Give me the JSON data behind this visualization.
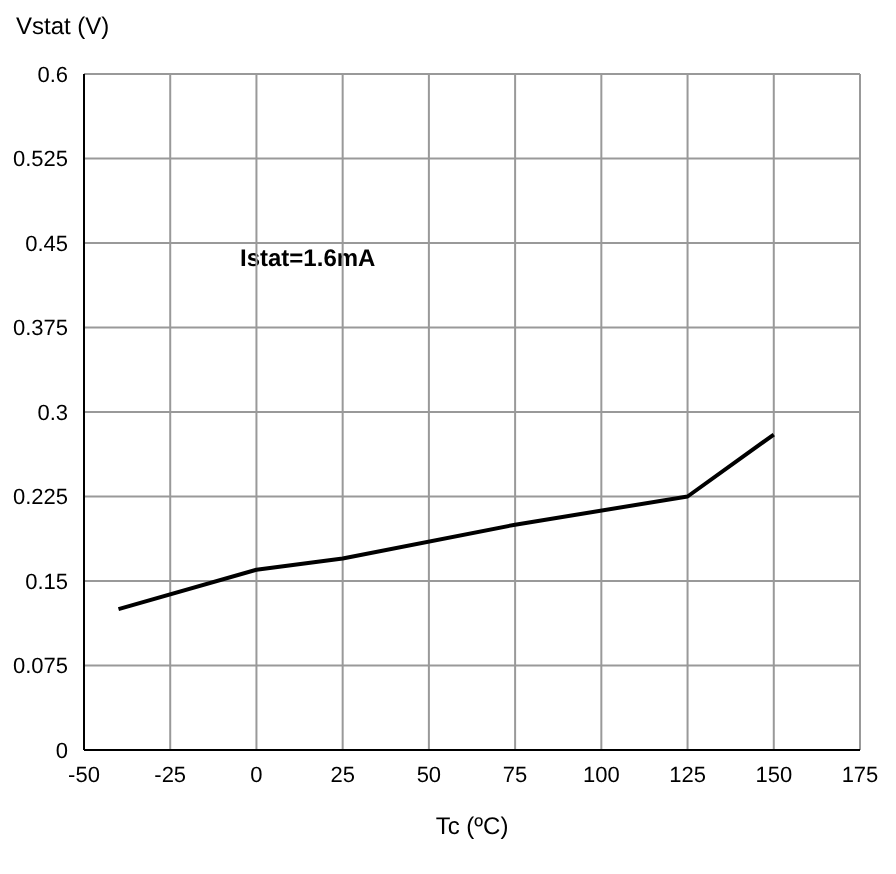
{
  "chart_data": {
    "type": "line",
    "xlabel": "Tc (ºC)",
    "ylabel": "Vstat (V)",
    "annotations": [
      "Istat=1.6mA"
    ],
    "x": [
      -40,
      0,
      25,
      75,
      125,
      150
    ],
    "series": [
      {
        "color": "#000000",
        "values": [
          0.125,
          0.16,
          0.17,
          0.2,
          0.225,
          0.28
        ]
      }
    ],
    "xlim": [
      -50,
      175
    ],
    "xticks": [
      -50,
      -25,
      0,
      25,
      50,
      75,
      100,
      125,
      150,
      175
    ],
    "ylim": [
      0,
      0.6
    ],
    "yticks": [
      0,
      0.075,
      0.15,
      0.225,
      0.3,
      0.375,
      0.45,
      0.525,
      0.6
    ],
    "grid": true,
    "marker": "none",
    "line_style": "solid",
    "legend": false
  }
}
